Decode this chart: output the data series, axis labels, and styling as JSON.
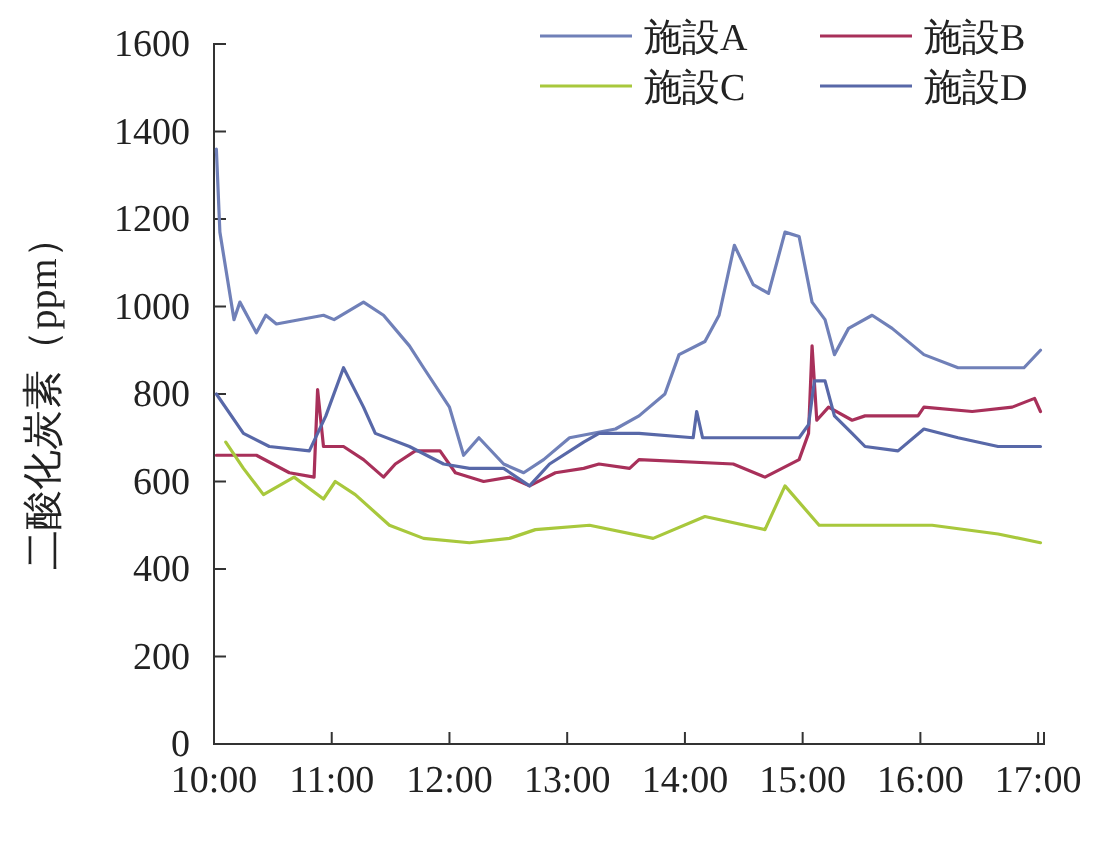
{
  "chart_data": {
    "type": "line",
    "ylabel": "二酸化炭素（ppm）",
    "xlim": [
      10,
      17.05
    ],
    "ylim": [
      0,
      1600
    ],
    "yticks": [
      0,
      200,
      400,
      600,
      800,
      1000,
      1200,
      1400,
      1600
    ],
    "xticks": [
      {
        "value": 10,
        "label": "10:00"
      },
      {
        "value": 11,
        "label": "11:00"
      },
      {
        "value": 12,
        "label": "12:00"
      },
      {
        "value": 13,
        "label": "13:00"
      },
      {
        "value": 14,
        "label": "14:00"
      },
      {
        "value": 15,
        "label": "15:00"
      },
      {
        "value": 16,
        "label": "16:00"
      },
      {
        "value": 17,
        "label": "17:00"
      }
    ],
    "legend": "top right",
    "grid": false,
    "marker": "none",
    "line_style": "solid",
    "series": [
      {
        "name": "施設A",
        "color": "#7080b8",
        "x": [
          10.02,
          10.05,
          10.17,
          10.22,
          10.36,
          10.44,
          10.53,
          10.93,
          11.02,
          11.27,
          11.44,
          11.66,
          11.78,
          12.0,
          12.12,
          12.25,
          12.46,
          12.63,
          12.8,
          13.02,
          13.41,
          13.61,
          13.83,
          13.95,
          14.17,
          14.29,
          14.42,
          14.58,
          14.71,
          14.85,
          14.97,
          15.08,
          15.19,
          15.27,
          15.39,
          15.59,
          15.76,
          16.03,
          16.32,
          16.66,
          16.88,
          17.02
        ],
        "values": [
          1360,
          1170,
          970,
          1010,
          940,
          980,
          960,
          980,
          970,
          1010,
          980,
          910,
          860,
          770,
          660,
          700,
          640,
          620,
          650,
          700,
          720,
          750,
          800,
          890,
          920,
          980,
          1140,
          1050,
          1030,
          1170,
          1160,
          1010,
          970,
          890,
          950,
          980,
          950,
          890,
          860,
          860,
          860,
          900
        ]
      },
      {
        "name": "施設B",
        "color": "#a8305a",
        "x": [
          10.02,
          10.36,
          10.64,
          10.85,
          10.88,
          10.93,
          11.1,
          11.27,
          11.44,
          11.54,
          11.71,
          11.92,
          12.05,
          12.29,
          12.51,
          12.68,
          12.9,
          13.14,
          13.27,
          13.53,
          13.61,
          14.41,
          14.68,
          14.97,
          15.05,
          15.08,
          15.12,
          15.22,
          15.42,
          15.53,
          15.98,
          16.03,
          16.44,
          16.78,
          16.97,
          17.02
        ],
        "values": [
          660,
          660,
          620,
          610,
          810,
          680,
          680,
          650,
          610,
          640,
          670,
          670,
          620,
          600,
          610,
          590,
          620,
          630,
          640,
          630,
          650,
          640,
          610,
          650,
          710,
          910,
          740,
          770,
          740,
          750,
          750,
          770,
          760,
          770,
          790,
          760
        ]
      },
      {
        "name": "施設C",
        "color": "#a8c83c",
        "x": [
          10.1,
          10.25,
          10.42,
          10.68,
          10.93,
          11.03,
          11.2,
          11.49,
          11.78,
          12.17,
          12.51,
          12.73,
          13.19,
          13.73,
          14.17,
          14.68,
          14.85,
          15.14,
          15.53,
          16.1,
          16.66,
          17.02
        ],
        "values": [
          690,
          630,
          570,
          610,
          560,
          600,
          570,
          500,
          470,
          460,
          470,
          490,
          500,
          470,
          520,
          490,
          590,
          500,
          500,
          500,
          480,
          460
        ]
      },
      {
        "name": "施設D",
        "color": "#5868a8",
        "x": [
          10.02,
          10.25,
          10.47,
          10.81,
          10.95,
          11.1,
          11.27,
          11.37,
          11.66,
          11.95,
          12.17,
          12.46,
          12.68,
          12.85,
          13.14,
          13.27,
          13.61,
          14.07,
          14.1,
          14.15,
          14.68,
          14.97,
          15.05,
          15.1,
          15.19,
          15.27,
          15.42,
          15.53,
          15.81,
          16.03,
          16.32,
          16.66,
          17.02
        ],
        "values": [
          800,
          710,
          680,
          670,
          750,
          860,
          770,
          710,
          680,
          640,
          630,
          630,
          590,
          640,
          690,
          710,
          710,
          700,
          760,
          700,
          700,
          700,
          730,
          830,
          830,
          750,
          710,
          680,
          670,
          720,
          700,
          680,
          680
        ]
      }
    ]
  }
}
